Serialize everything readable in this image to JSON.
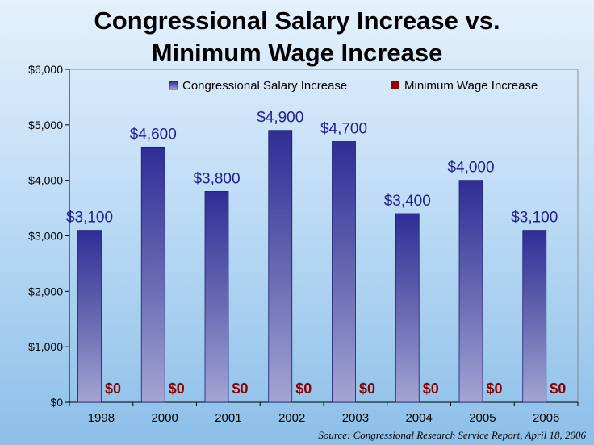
{
  "chart_data": {
    "type": "bar",
    "title": [
      "Congressional Salary Increase vs.",
      "Minimum Wage Increase"
    ],
    "categories": [
      "1998",
      "2000",
      "2001",
      "2002",
      "2003",
      "2004",
      "2005",
      "2006"
    ],
    "series": [
      {
        "name": "Congressional Salary Increase",
        "color": "#33339a",
        "values": [
          3100,
          4600,
          3800,
          4900,
          4700,
          3400,
          4000,
          3100
        ],
        "labels": [
          "$3,100",
          "$4,600",
          "$3,800",
          "$4,900",
          "$4,700",
          "$3,400",
          "$4,000",
          "$3,100"
        ]
      },
      {
        "name": "Minimum Wage Increase",
        "color": "#990000",
        "values": [
          0,
          0,
          0,
          0,
          0,
          0,
          0,
          0
        ],
        "labels": [
          "$0",
          "$0",
          "$0",
          "$0",
          "$0",
          "$0",
          "$0",
          "$0"
        ]
      }
    ],
    "ylim": [
      0,
      6000
    ],
    "yticks": [
      0,
      1000,
      2000,
      3000,
      4000,
      5000,
      6000
    ],
    "ytick_labels": [
      "$0",
      "$1,000",
      "$2,000",
      "$3,000",
      "$4,000",
      "$5,000",
      "$6,000"
    ],
    "xlabel": "",
    "ylabel": "",
    "legend_position": "top-right",
    "source": "Source: Congressional Research Service Report, April 18, 2006"
  }
}
